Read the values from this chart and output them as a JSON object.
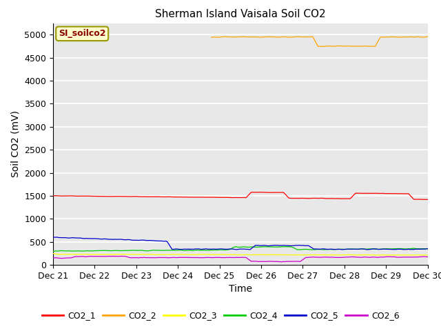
{
  "title": "Sherman Island Vaisala Soil CO2",
  "xlabel": "Time",
  "ylabel": "Soil CO2 (mV)",
  "ylim": [
    0,
    5250
  ],
  "yticks": [
    0,
    500,
    1000,
    1500,
    2000,
    2500,
    3000,
    3500,
    4000,
    4500,
    5000
  ],
  "x_start": 21,
  "x_end": 30,
  "xtick_positions": [
    21,
    22,
    23,
    24,
    25,
    26,
    27,
    28,
    29,
    30
  ],
  "xtick_labels": [
    "Dec 21",
    "Dec 22",
    "Dec 23",
    "Dec 24",
    "Dec 25",
    "Dec 26",
    "Dec 27",
    "Dec 28",
    "Dec 29",
    "Dec 30"
  ],
  "legend_label": "SI_soilco2",
  "legend_box_color": "#ffffcc",
  "legend_text_color": "#8b0000",
  "series_colors": {
    "CO2_1": "#ff0000",
    "CO2_2": "#ffa500",
    "CO2_3": "#ffff00",
    "CO2_4": "#00cc00",
    "CO2_5": "#0000cc",
    "CO2_6": "#cc00cc"
  },
  "background_color": "#e8e8e8",
  "grid_color": "#ffffff",
  "title_fontsize": 11,
  "axis_fontsize": 10,
  "tick_fontsize": 9,
  "legend_fontsize": 9
}
